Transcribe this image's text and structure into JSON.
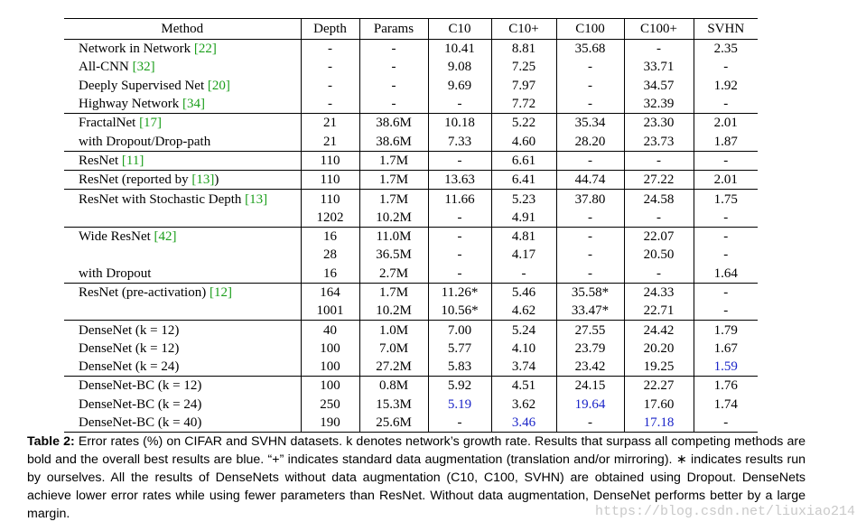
{
  "table": {
    "headers": [
      "Method",
      "Depth",
      "Params",
      "C10",
      "C10+",
      "C100",
      "C100+",
      "SVHN"
    ],
    "groups": [
      {
        "rows": [
          {
            "method": "Network in Network ",
            "ref": "[22]",
            "cells": [
              "-",
              "-",
              "10.41",
              "8.81",
              "35.68",
              "-",
              "2.35"
            ]
          },
          {
            "method": "All-CNN ",
            "ref": "[32]",
            "cells": [
              "-",
              "-",
              "9.08",
              "7.25",
              "-",
              "33.71",
              "-"
            ]
          },
          {
            "method": "Deeply Supervised Net ",
            "ref": "[20]",
            "cells": [
              "-",
              "-",
              "9.69",
              "7.97",
              "-",
              "34.57",
              "1.92"
            ]
          },
          {
            "method": "Highway Network ",
            "ref": "[34]",
            "cells": [
              "-",
              "-",
              "-",
              "7.72",
              "-",
              "32.39",
              "-"
            ]
          }
        ]
      },
      {
        "rows": [
          {
            "method": "FractalNet ",
            "ref": "[17]",
            "cells": [
              "21",
              "38.6M",
              "10.18",
              "5.22",
              "35.34",
              "23.30",
              "2.01"
            ]
          },
          {
            "method": "with Dropout/Drop-path",
            "ref": "",
            "cells": [
              "21",
              "38.6M",
              "7.33",
              "4.60",
              "28.20",
              "23.73",
              "1.87"
            ]
          }
        ]
      },
      {
        "rows": [
          {
            "method": "ResNet ",
            "ref": "[11]",
            "cells": [
              "110",
              "1.7M",
              "-",
              "6.61",
              "-",
              "-",
              "-"
            ]
          }
        ]
      },
      {
        "rows": [
          {
            "method": "ResNet (reported by ",
            "ref": "[13]",
            "suffix": ")",
            "cells": [
              "110",
              "1.7M",
              "13.63",
              "6.41",
              "44.74",
              "27.22",
              "2.01"
            ]
          }
        ]
      },
      {
        "rows": [
          {
            "method": "ResNet with Stochastic Depth ",
            "ref": "[13]",
            "cells": [
              "110",
              "1.7M",
              "11.66",
              "5.23",
              "37.80",
              "24.58",
              "1.75"
            ]
          },
          {
            "method": "",
            "ref": "",
            "cells": [
              "1202",
              "10.2M",
              "-",
              "4.91",
              "-",
              "-",
              "-"
            ]
          }
        ]
      },
      {
        "rows": [
          {
            "method": "Wide ResNet ",
            "ref": "[42]",
            "cells": [
              "16",
              "11.0M",
              "-",
              "4.81",
              "-",
              "22.07",
              "-"
            ]
          },
          {
            "method": "",
            "ref": "",
            "cells": [
              "28",
              "36.5M",
              "-",
              "4.17",
              "-",
              "20.50",
              "-"
            ]
          },
          {
            "method": "with Dropout",
            "ref": "",
            "cells": [
              "16",
              "2.7M",
              "-",
              "-",
              "-",
              "-",
              "1.64"
            ]
          }
        ]
      },
      {
        "rows": [
          {
            "method": "ResNet (pre-activation) ",
            "ref": "[12]",
            "cells": [
              "164",
              "1.7M",
              "11.26*",
              "5.46",
              "35.58*",
              "24.33",
              "-"
            ]
          },
          {
            "method": "",
            "ref": "",
            "cells": [
              "1001",
              "10.2M",
              "10.56*",
              "4.62",
              "33.47*",
              "22.71",
              "-"
            ]
          }
        ]
      },
      {
        "rows": [
          {
            "method": "DenseNet (k = 12)",
            "ref": "",
            "cells": [
              "40",
              "1.0M",
              "7.00",
              "5.24",
              "27.55",
              "24.42",
              "1.79"
            ],
            "bold": [
              2,
              4
            ],
            "blue": []
          },
          {
            "method": "DenseNet (k = 12)",
            "ref": "",
            "cells": [
              "100",
              "7.0M",
              "5.77",
              "4.10",
              "23.79",
              "20.20",
              "1.67"
            ],
            "bold": [
              2,
              3,
              4,
              5
            ],
            "blue": []
          },
          {
            "method": "DenseNet (k = 24)",
            "ref": "",
            "cells": [
              "100",
              "27.2M",
              "5.83",
              "3.74",
              "23.42",
              "19.25",
              "1.59"
            ],
            "bold": [
              2,
              3,
              4,
              5,
              6
            ],
            "blue": [
              6
            ]
          }
        ]
      },
      {
        "rows": [
          {
            "method": "DenseNet-BC (k = 12)",
            "ref": "",
            "cells": [
              "100",
              "0.8M",
              "5.92",
              "4.51",
              "24.15",
              "22.27",
              "1.76"
            ],
            "bold": [
              2,
              4
            ],
            "blue": []
          },
          {
            "method": "DenseNet-BC (k = 24)",
            "ref": "",
            "cells": [
              "250",
              "15.3M",
              "5.19",
              "3.62",
              "19.64",
              "17.60",
              "1.74"
            ],
            "bold": [
              2,
              3,
              4,
              5
            ],
            "blue": [
              2,
              4
            ]
          },
          {
            "method": "DenseNet-BC (k = 40)",
            "ref": "",
            "cells": [
              "190",
              "25.6M",
              "-",
              "3.46",
              "-",
              "17.18",
              "-"
            ],
            "bold": [
              3,
              5
            ],
            "blue": [
              3,
              5
            ]
          }
        ]
      }
    ]
  },
  "caption": {
    "label": "Table 2:",
    "text": " Error rates (%) on CIFAR and SVHN datasets. k denotes network’s growth rate. Results that surpass all competing methods are bold and the overall best results are blue. “+” indicates standard data augmentation (translation and/or mirroring). ∗ indicates results run by ourselves. All the results of DenseNets without data augmentation (C10, C100, SVHN) are obtained using Dropout. DenseNets achieve lower error rates while using fewer parameters than ResNet. Without data augmentation, DenseNet performs better by a large margin."
  },
  "watermark": "https://blog.csdn.net/liuxiao214"
}
